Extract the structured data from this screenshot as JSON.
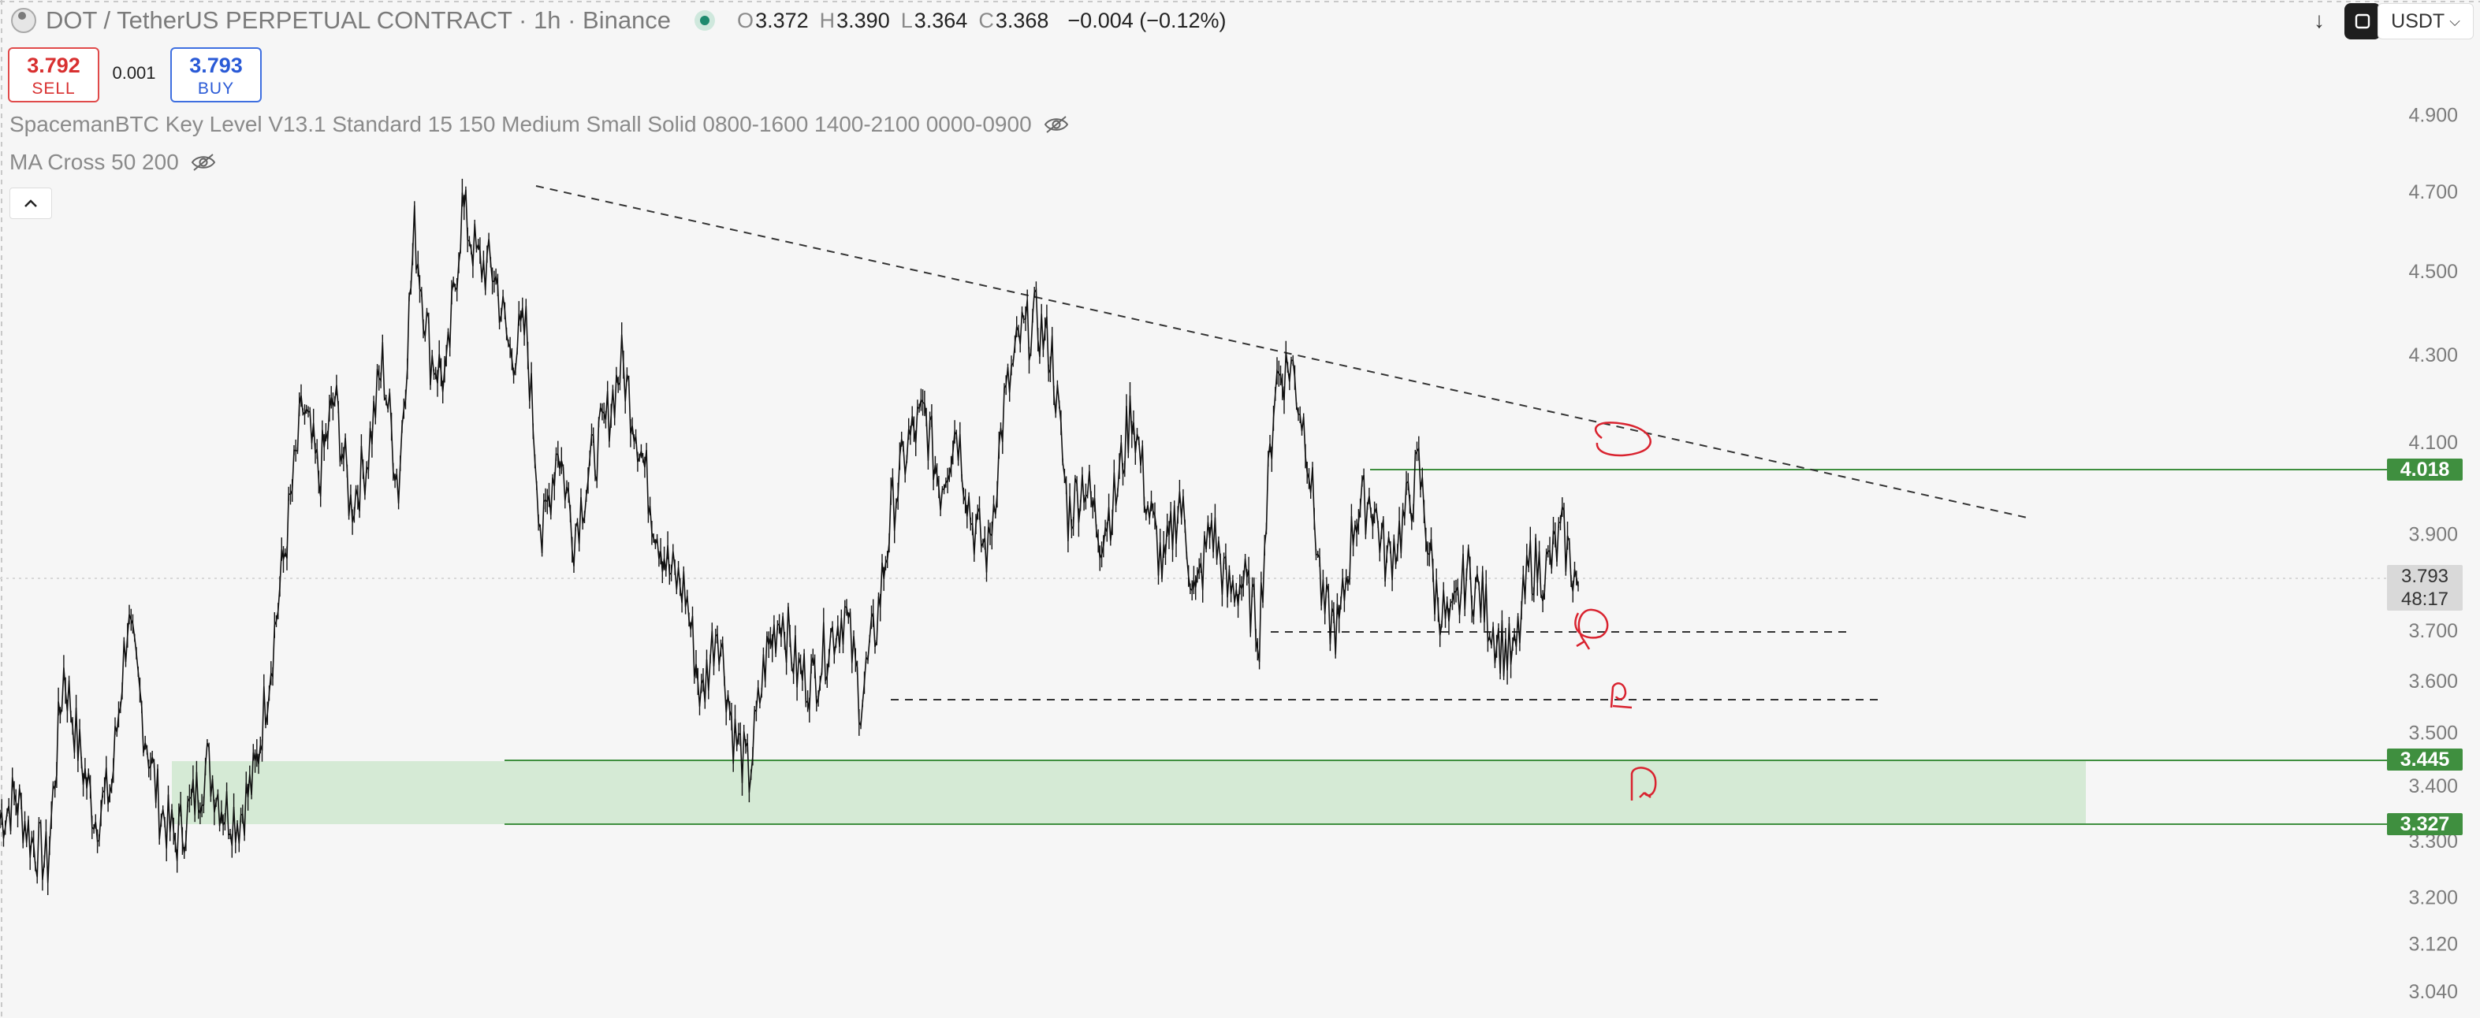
{
  "header": {
    "symbol": "DOT / TetherUS PERPETUAL CONTRACT · 1h · Binance",
    "ohlc": {
      "o_label": "O",
      "o": "3.372",
      "h_label": "H",
      "h": "3.390",
      "l_label": "L",
      "l": "3.364",
      "c_label": "C",
      "c": "3.368",
      "change": "−0.004 (−0.12%)"
    },
    "currency": "USDT"
  },
  "trade": {
    "sell_price": "3.792",
    "sell_label": "SELL",
    "spread": "0.001",
    "buy_price": "3.793",
    "buy_label": "BUY"
  },
  "indicators": [
    "SpacemanBTC Key Level V13.1 Standard 15 150 Medium Small Solid 0800-1600 1400-2100 0000-0900",
    "MA Cross 50 200"
  ],
  "price_tags": {
    "resistance": "4.018",
    "current_price": "3.793",
    "countdown": "48:17",
    "zone_top": "3.445",
    "zone_bottom": "3.327"
  },
  "colors": {
    "accent_green": "#3f8f3f",
    "zone_fill": "#d5ead5",
    "annotation_red": "#d9232f",
    "sell_red": "#d83030",
    "buy_blue": "#2a5ad6"
  },
  "chart_data": {
    "type": "line",
    "title": "DOT / TetherUS PERPETUAL CONTRACT · 1h · Binance",
    "xlabel": "",
    "ylabel": "",
    "y_scale": "log",
    "ylim": [
      3.04,
      4.95
    ],
    "y_ticks": [
      "4.900",
      "4.700",
      "4.500",
      "4.300",
      "4.100",
      "3.900",
      "3.700",
      "3.600",
      "3.500",
      "3.400",
      "3.300",
      "3.200",
      "3.120",
      "3.040"
    ],
    "series": [
      {
        "values": [
          3.34,
          3.38,
          3.3,
          3.26,
          3.62,
          3.46,
          3.34,
          3.4,
          3.72,
          3.52,
          3.36,
          3.3,
          3.36,
          3.44,
          3.36,
          3.34,
          3.42,
          3.64,
          3.9,
          4.18,
          4.02,
          4.2,
          3.96,
          4.06,
          4.28,
          4.0,
          4.6,
          4.3,
          4.24,
          4.66,
          4.52,
          4.5,
          4.3,
          4.36,
          3.88,
          4.1,
          3.9,
          4.04,
          4.14,
          4.28,
          4.12,
          3.94,
          3.82,
          3.78,
          3.56,
          3.72,
          3.5,
          3.42,
          3.64,
          3.74,
          3.62,
          3.6,
          3.68,
          3.74,
          3.56,
          3.72,
          3.96,
          4.1,
          4.16,
          4.0,
          4.14,
          3.92,
          3.86,
          4.18,
          4.34,
          4.38,
          4.3,
          3.94,
          4.02,
          3.9,
          3.98,
          4.18,
          3.96,
          3.82,
          3.98,
          3.76,
          3.92,
          3.78,
          3.8,
          3.7,
          4.24,
          4.28,
          4.1,
          3.74,
          3.7,
          3.94,
          3.98,
          3.84,
          3.92,
          4.04,
          3.78,
          3.7,
          3.82,
          3.76,
          3.68,
          3.64,
          3.84,
          3.82,
          3.9,
          3.79
        ]
      }
    ],
    "annotations": {
      "trendline": "descending, from swing high ≈4.68 to ≈3.90",
      "resistance_level": 4.018,
      "support_dashed_levels": [
        3.69,
        3.557
      ],
      "demand_zone": [
        3.327,
        3.445
      ]
    }
  }
}
